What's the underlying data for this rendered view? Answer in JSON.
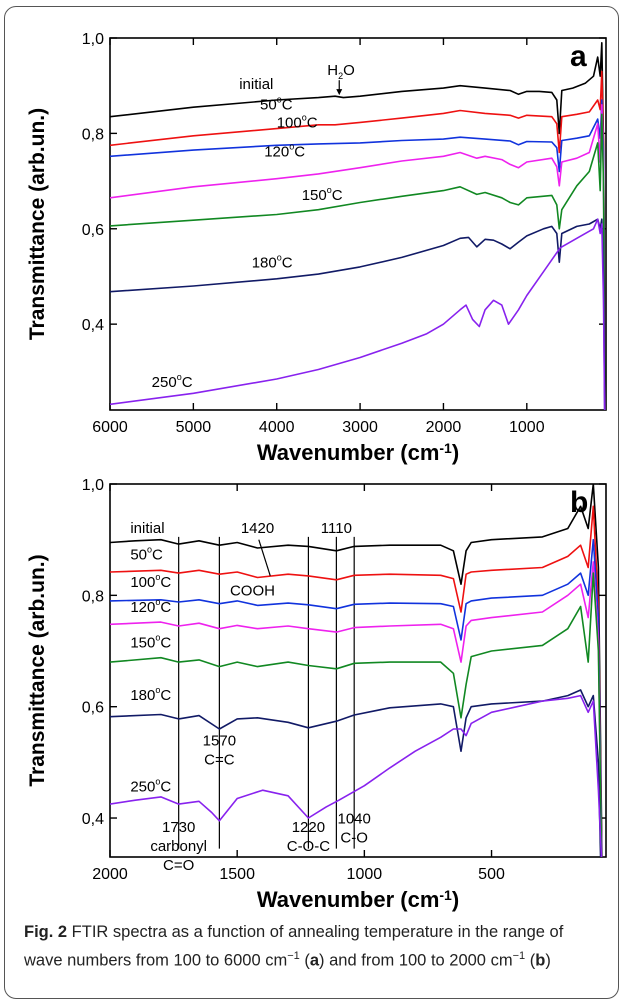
{
  "caption": {
    "label": "Fig. 2",
    "parts": [
      {
        "t": " FTIR spectra as a function of annealing temperature in the range of wave numbers from 100 to 6000 cm"
      },
      {
        "t": "−1",
        "sup": true
      },
      {
        "t": " ("
      },
      {
        "t": "a",
        "bold": true
      },
      {
        "t": ") and from 100 to 2000 cm"
      },
      {
        "t": "−1",
        "sup": true
      },
      {
        "t": " ("
      },
      {
        "t": "b",
        "bold": true
      },
      {
        "t": ")"
      }
    ]
  },
  "chart_data": [
    {
      "type": "line",
      "panel_label": "a",
      "xlabel": "Wavenumber (cm",
      "xlabel_sup": "-1",
      "xlabel_end": ")",
      "ylabel": "Transmittance (arb.un.)",
      "xlim": [
        6000,
        50
      ],
      "ylim": [
        0.22,
        1.0
      ],
      "x_reversed": true,
      "xticks": [
        6000,
        5000,
        4000,
        3000,
        2000,
        1000
      ],
      "xtick_labels": [
        "6000",
        "5000",
        "4000",
        "3000",
        "2000",
        "1000"
      ],
      "yticks": [
        0.4,
        0.6,
        0.8,
        1.0
      ],
      "ytick_labels": [
        "0,4",
        "0,6",
        "0,8",
        "1,0"
      ],
      "annotations": [
        {
          "text": "H",
          "sub": "2",
          "text_end": "O",
          "x": 3250,
          "y": 0.922,
          "arrow_to": [
            3250,
            0.878
          ]
        }
      ],
      "series": [
        {
          "name": "initial",
          "name_sup": "",
          "color": "#000000",
          "label_x": 4450,
          "label_y": 0.893,
          "x": [
            6000,
            5000,
            4000,
            3500,
            3300,
            3200,
            3000,
            2500,
            2000,
            1800,
            1500,
            1200,
            1100,
            1000,
            850,
            700,
            640,
            610,
            580,
            450,
            300,
            200,
            150,
            120,
            100,
            80,
            60
          ],
          "y": [
            0.835,
            0.855,
            0.87,
            0.875,
            0.878,
            0.875,
            0.878,
            0.888,
            0.895,
            0.9,
            0.895,
            0.89,
            0.882,
            0.888,
            0.888,
            0.886,
            0.87,
            0.8,
            0.89,
            0.895,
            0.905,
            0.92,
            0.96,
            0.92,
            0.99,
            0.78,
            0.1
          ]
        },
        {
          "name": "50",
          "name_sup": "o",
          "name_end": "C",
          "color": "#ee1111",
          "label_x": 4200,
          "label_y": 0.85,
          "x": [
            6000,
            5000,
            4000,
            3500,
            3300,
            3000,
            2500,
            2000,
            1800,
            1500,
            1200,
            1100,
            1000,
            700,
            640,
            610,
            580,
            400,
            250,
            150,
            120,
            100,
            80,
            60
          ],
          "y": [
            0.775,
            0.795,
            0.81,
            0.818,
            0.818,
            0.823,
            0.832,
            0.842,
            0.848,
            0.842,
            0.838,
            0.832,
            0.838,
            0.835,
            0.82,
            0.76,
            0.835,
            0.84,
            0.845,
            0.87,
            0.85,
            0.93,
            0.78,
            0.1
          ]
        },
        {
          "name": "100",
          "name_sup": "o",
          "name_end": "C",
          "color": "#1133dd",
          "label_x": 4000,
          "label_y": 0.812,
          "x": [
            6000,
            5000,
            4000,
            3500,
            3000,
            2500,
            2000,
            1800,
            1500,
            1200,
            1100,
            1000,
            700,
            640,
            610,
            580,
            400,
            250,
            150,
            120,
            100,
            80,
            60
          ],
          "y": [
            0.752,
            0.765,
            0.775,
            0.778,
            0.78,
            0.785,
            0.788,
            0.792,
            0.788,
            0.784,
            0.776,
            0.783,
            0.782,
            0.77,
            0.72,
            0.785,
            0.79,
            0.795,
            0.83,
            0.79,
            0.87,
            0.76,
            0.1
          ]
        },
        {
          "name": "120",
          "name_sup": "o",
          "name_end": "C",
          "color": "#ee22ee",
          "label_x": 4150,
          "label_y": 0.752,
          "x": [
            6000,
            5000,
            4000,
            3500,
            3000,
            2500,
            2000,
            1800,
            1600,
            1500,
            1300,
            1200,
            1100,
            1000,
            700,
            640,
            610,
            580,
            400,
            250,
            150,
            120,
            100,
            80,
            60
          ],
          "y": [
            0.665,
            0.688,
            0.705,
            0.715,
            0.728,
            0.742,
            0.752,
            0.76,
            0.748,
            0.752,
            0.745,
            0.735,
            0.728,
            0.74,
            0.748,
            0.73,
            0.69,
            0.74,
            0.748,
            0.76,
            0.82,
            0.74,
            0.86,
            0.72,
            0.1
          ]
        },
        {
          "name": "150",
          "name_sup": "o",
          "name_end": "C",
          "color": "#118822",
          "label_x": 3700,
          "label_y": 0.66,
          "x": [
            6000,
            5000,
            4000,
            3500,
            3000,
            2500,
            2000,
            1800,
            1600,
            1500,
            1300,
            1200,
            1100,
            1000,
            700,
            640,
            610,
            580,
            400,
            250,
            150,
            120,
            100,
            80,
            60
          ],
          "y": [
            0.606,
            0.618,
            0.63,
            0.64,
            0.655,
            0.668,
            0.68,
            0.688,
            0.672,
            0.676,
            0.665,
            0.655,
            0.65,
            0.665,
            0.67,
            0.65,
            0.6,
            0.64,
            0.69,
            0.72,
            0.78,
            0.68,
            0.84,
            0.7,
            0.1
          ]
        },
        {
          "name": "180",
          "name_sup": "o",
          "name_end": "C",
          "color": "#111a66",
          "label_x": 4300,
          "label_y": 0.519,
          "x": [
            6000,
            5000,
            4000,
            3500,
            3000,
            2500,
            2000,
            1800,
            1700,
            1600,
            1500,
            1400,
            1300,
            1200,
            1100,
            1000,
            800,
            700,
            640,
            610,
            580,
            400,
            250,
            150,
            120,
            100,
            80,
            60
          ],
          "y": [
            0.468,
            0.48,
            0.495,
            0.505,
            0.52,
            0.54,
            0.565,
            0.58,
            0.582,
            0.562,
            0.578,
            0.576,
            0.568,
            0.558,
            0.572,
            0.585,
            0.6,
            0.605,
            0.59,
            0.53,
            0.59,
            0.605,
            0.61,
            0.62,
            0.6,
            0.62,
            0.5,
            0.1
          ]
        },
        {
          "name": "250",
          "name_sup": "o",
          "name_end": "C",
          "color": "#8822ee",
          "label_x": 5500,
          "label_y": 0.268,
          "x": [
            6000,
            5000,
            4000,
            3500,
            3000,
            2500,
            2200,
            2000,
            1800,
            1730,
            1650,
            1570,
            1500,
            1400,
            1300,
            1220,
            1100,
            1000,
            800,
            600,
            400,
            200,
            150,
            120,
            100,
            80,
            60
          ],
          "y": [
            0.232,
            0.255,
            0.285,
            0.305,
            0.33,
            0.36,
            0.38,
            0.4,
            0.43,
            0.44,
            0.41,
            0.395,
            0.43,
            0.45,
            0.44,
            0.4,
            0.43,
            0.46,
            0.51,
            0.56,
            0.58,
            0.6,
            0.62,
            0.59,
            0.61,
            0.45,
            0.1
          ]
        }
      ]
    },
    {
      "type": "line",
      "panel_label": "b",
      "xlabel": "Wavenumber (cm",
      "xlabel_sup": "-1",
      "xlabel_end": ")",
      "ylabel": "Transmittance (arb.un.)",
      "xlim": [
        2000,
        50
      ],
      "ylim": [
        0.33,
        1.0
      ],
      "x_reversed": true,
      "xticks": [
        2000,
        1500,
        1000,
        500
      ],
      "xtick_labels": [
        "2000",
        "1500",
        "1000",
        "500"
      ],
      "yticks": [
        0.4,
        0.6,
        0.8,
        1.0
      ],
      "ytick_labels": [
        "0,4",
        "0,6",
        "0,8",
        "1,0"
      ],
      "vlines": [
        1730,
        1570,
        1220,
        1110,
        1040
      ],
      "peak_labels": [
        {
          "lines": [
            "1730",
            "carbonyl",
            "C=O"
          ],
          "x": 1730,
          "y": 0.375
        },
        {
          "lines": [
            "1570",
            "C=C"
          ],
          "x": 1570,
          "y": 0.53
        },
        {
          "lines": [
            "1220",
            "C-O-C"
          ],
          "x": 1220,
          "y": 0.375
        },
        {
          "lines": [
            "1040",
            "C-O"
          ],
          "x": 1040,
          "y": 0.39
        },
        {
          "lines": [
            "1420"
          ],
          "x": 1420,
          "y": 0.912
        },
        {
          "lines": [
            "1110"
          ],
          "x": 1110,
          "y": 0.912
        },
        {
          "lines": [
            "COOH"
          ],
          "x": 1440,
          "y": 0.8
        }
      ],
      "series": [
        {
          "name": "initial",
          "name_sup": "",
          "color": "#000000",
          "label_x": 1920,
          "label_y": 0.912,
          "x": [
            2000,
            1900,
            1800,
            1730,
            1650,
            1570,
            1500,
            1420,
            1300,
            1220,
            1110,
            1040,
            900,
            700,
            650,
            620,
            600,
            580,
            500,
            300,
            200,
            150,
            120,
            100,
            80,
            60
          ],
          "y": [
            0.895,
            0.898,
            0.9,
            0.892,
            0.898,
            0.89,
            0.895,
            0.885,
            0.89,
            0.888,
            0.88,
            0.888,
            0.89,
            0.89,
            0.88,
            0.82,
            0.88,
            0.895,
            0.9,
            0.905,
            0.92,
            0.96,
            0.92,
            1.0,
            0.85,
            0.1
          ]
        },
        {
          "name": "50",
          "name_sup": "o",
          "name_end": "C",
          "color": "#ee1111",
          "label_x": 1920,
          "label_y": 0.864,
          "x": [
            2000,
            1800,
            1730,
            1650,
            1570,
            1500,
            1420,
            1300,
            1220,
            1110,
            1040,
            900,
            700,
            650,
            620,
            600,
            580,
            500,
            300,
            200,
            150,
            120,
            100,
            80,
            60
          ],
          "y": [
            0.842,
            0.845,
            0.84,
            0.845,
            0.838,
            0.842,
            0.832,
            0.838,
            0.835,
            0.828,
            0.836,
            0.838,
            0.836,
            0.83,
            0.77,
            0.838,
            0.842,
            0.845,
            0.85,
            0.87,
            0.89,
            0.85,
            0.96,
            0.78,
            0.1
          ]
        },
        {
          "name": "100",
          "name_sup": "o",
          "name_end": "C",
          "color": "#1133dd",
          "label_x": 1920,
          "label_y": 0.815,
          "x": [
            2000,
            1800,
            1730,
            1650,
            1570,
            1500,
            1420,
            1300,
            1220,
            1110,
            1040,
            900,
            700,
            650,
            620,
            600,
            580,
            500,
            300,
            200,
            150,
            120,
            100,
            80,
            60
          ],
          "y": [
            0.79,
            0.792,
            0.788,
            0.792,
            0.785,
            0.79,
            0.782,
            0.786,
            0.783,
            0.776,
            0.784,
            0.786,
            0.785,
            0.78,
            0.72,
            0.785,
            0.79,
            0.795,
            0.8,
            0.82,
            0.84,
            0.8,
            0.9,
            0.76,
            0.1
          ]
        },
        {
          "name": "120",
          "name_sup": "o",
          "name_end": "C",
          "color": "#ee22ee",
          "label_x": 1920,
          "label_y": 0.77,
          "x": [
            2000,
            1800,
            1730,
            1650,
            1570,
            1500,
            1420,
            1300,
            1220,
            1110,
            1040,
            900,
            700,
            650,
            620,
            600,
            580,
            500,
            300,
            200,
            150,
            120,
            100,
            80,
            60
          ],
          "y": [
            0.748,
            0.752,
            0.745,
            0.75,
            0.74,
            0.746,
            0.74,
            0.745,
            0.74,
            0.734,
            0.742,
            0.745,
            0.748,
            0.74,
            0.68,
            0.745,
            0.755,
            0.76,
            0.77,
            0.8,
            0.82,
            0.76,
            0.86,
            0.72,
            0.1
          ]
        },
        {
          "name": "150",
          "name_sup": "o",
          "name_end": "C",
          "color": "#118822",
          "label_x": 1920,
          "label_y": 0.706,
          "x": [
            2000,
            1800,
            1730,
            1650,
            1570,
            1500,
            1420,
            1300,
            1220,
            1110,
            1040,
            900,
            700,
            650,
            620,
            600,
            580,
            500,
            300,
            200,
            150,
            120,
            100,
            80,
            60
          ],
          "y": [
            0.68,
            0.688,
            0.68,
            0.684,
            0.672,
            0.68,
            0.672,
            0.68,
            0.674,
            0.668,
            0.678,
            0.68,
            0.68,
            0.66,
            0.58,
            0.64,
            0.69,
            0.7,
            0.71,
            0.74,
            0.78,
            0.68,
            0.84,
            0.7,
            0.1
          ]
        },
        {
          "name": "180",
          "name_sup": "o",
          "name_end": "C",
          "color": "#111a66",
          "label_x": 1920,
          "label_y": 0.612,
          "x": [
            2000,
            1800,
            1730,
            1650,
            1570,
            1500,
            1420,
            1300,
            1220,
            1110,
            1040,
            900,
            700,
            650,
            620,
            600,
            580,
            500,
            300,
            200,
            150,
            120,
            100,
            80,
            60
          ],
          "y": [
            0.582,
            0.586,
            0.578,
            0.584,
            0.56,
            0.578,
            0.58,
            0.572,
            0.562,
            0.574,
            0.585,
            0.598,
            0.605,
            0.6,
            0.52,
            0.58,
            0.6,
            0.605,
            0.61,
            0.62,
            0.63,
            0.6,
            0.62,
            0.5,
            0.1
          ]
        },
        {
          "name": "250",
          "name_sup": "o",
          "name_end": "C",
          "color": "#8822ee",
          "label_x": 1920,
          "label_y": 0.448,
          "x": [
            2000,
            1900,
            1800,
            1730,
            1650,
            1600,
            1570,
            1500,
            1400,
            1300,
            1220,
            1150,
            1100,
            1000,
            900,
            800,
            700,
            650,
            620,
            600,
            580,
            500,
            400,
            300,
            200,
            150,
            120,
            100,
            80,
            60
          ],
          "y": [
            0.425,
            0.432,
            0.438,
            0.425,
            0.43,
            0.41,
            0.395,
            0.435,
            0.45,
            0.44,
            0.4,
            0.42,
            0.432,
            0.458,
            0.49,
            0.52,
            0.545,
            0.56,
            0.56,
            0.548,
            0.57,
            0.59,
            0.6,
            0.61,
            0.615,
            0.62,
            0.59,
            0.61,
            0.45,
            0.25
          ]
        }
      ]
    }
  ]
}
